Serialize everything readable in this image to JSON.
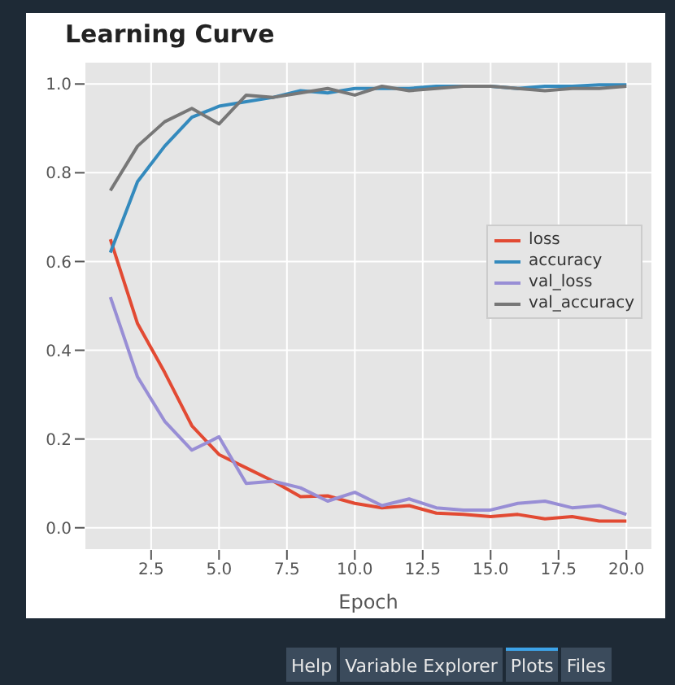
{
  "chart_data": {
    "type": "line",
    "title": "Learning Curve",
    "xlabel": "Epoch",
    "x": [
      1,
      2,
      3,
      4,
      5,
      6,
      7,
      8,
      9,
      10,
      11,
      12,
      13,
      14,
      15,
      16,
      17,
      18,
      19,
      20
    ],
    "series": [
      {
        "name": "loss",
        "color": "#e24a33",
        "values": [
          0.65,
          0.46,
          0.35,
          0.23,
          0.165,
          0.135,
          0.105,
          0.07,
          0.072,
          0.055,
          0.045,
          0.05,
          0.033,
          0.03,
          0.025,
          0.03,
          0.02,
          0.025,
          0.015,
          0.015
        ]
      },
      {
        "name": "accuracy",
        "color": "#348abd",
        "values": [
          0.62,
          0.78,
          0.86,
          0.925,
          0.95,
          0.96,
          0.97,
          0.985,
          0.98,
          0.99,
          0.99,
          0.99,
          0.995,
          0.995,
          0.995,
          0.99,
          0.995,
          0.995,
          0.998,
          0.998
        ]
      },
      {
        "name": "val_loss",
        "color": "#988ed5",
        "values": [
          0.52,
          0.34,
          0.24,
          0.175,
          0.205,
          0.1,
          0.105,
          0.09,
          0.06,
          0.08,
          0.05,
          0.065,
          0.045,
          0.04,
          0.04,
          0.055,
          0.06,
          0.045,
          0.05,
          0.03
        ]
      },
      {
        "name": "val_accuracy",
        "color": "#777777",
        "values": [
          0.76,
          0.86,
          0.915,
          0.945,
          0.91,
          0.975,
          0.97,
          0.98,
          0.99,
          0.975,
          0.995,
          0.985,
          0.99,
          0.995,
          0.995,
          0.99,
          0.985,
          0.99,
          0.99,
          0.995
        ]
      }
    ],
    "xlim": [
      0.05,
      20.95
    ],
    "xticks": [
      {
        "value": 2.5,
        "label": "2.5"
      },
      {
        "value": 5,
        "label": "5.0"
      },
      {
        "value": 7.5,
        "label": "7.5"
      },
      {
        "value": 10,
        "label": "10.0"
      },
      {
        "value": 12.5,
        "label": "12.5"
      },
      {
        "value": 15,
        "label": "15.0"
      },
      {
        "value": 17.5,
        "label": "17.5"
      },
      {
        "value": 20,
        "label": "20.0"
      }
    ],
    "ylim": [
      -0.05,
      1.05
    ],
    "yticks": [
      {
        "value": 0,
        "label": "0.0"
      },
      {
        "value": 0.2,
        "label": "0.2"
      },
      {
        "value": 0.4,
        "label": "0.4"
      },
      {
        "value": 0.6,
        "label": "0.6"
      },
      {
        "value": 0.8,
        "label": "0.8"
      },
      {
        "value": 1,
        "label": "1.0"
      }
    ],
    "grid": true,
    "legend": "right",
    "line_style": "solid",
    "marker": "none",
    "annotations": [
      "Help",
      "Variable Explorer",
      "Plots",
      "Files"
    ]
  }
}
